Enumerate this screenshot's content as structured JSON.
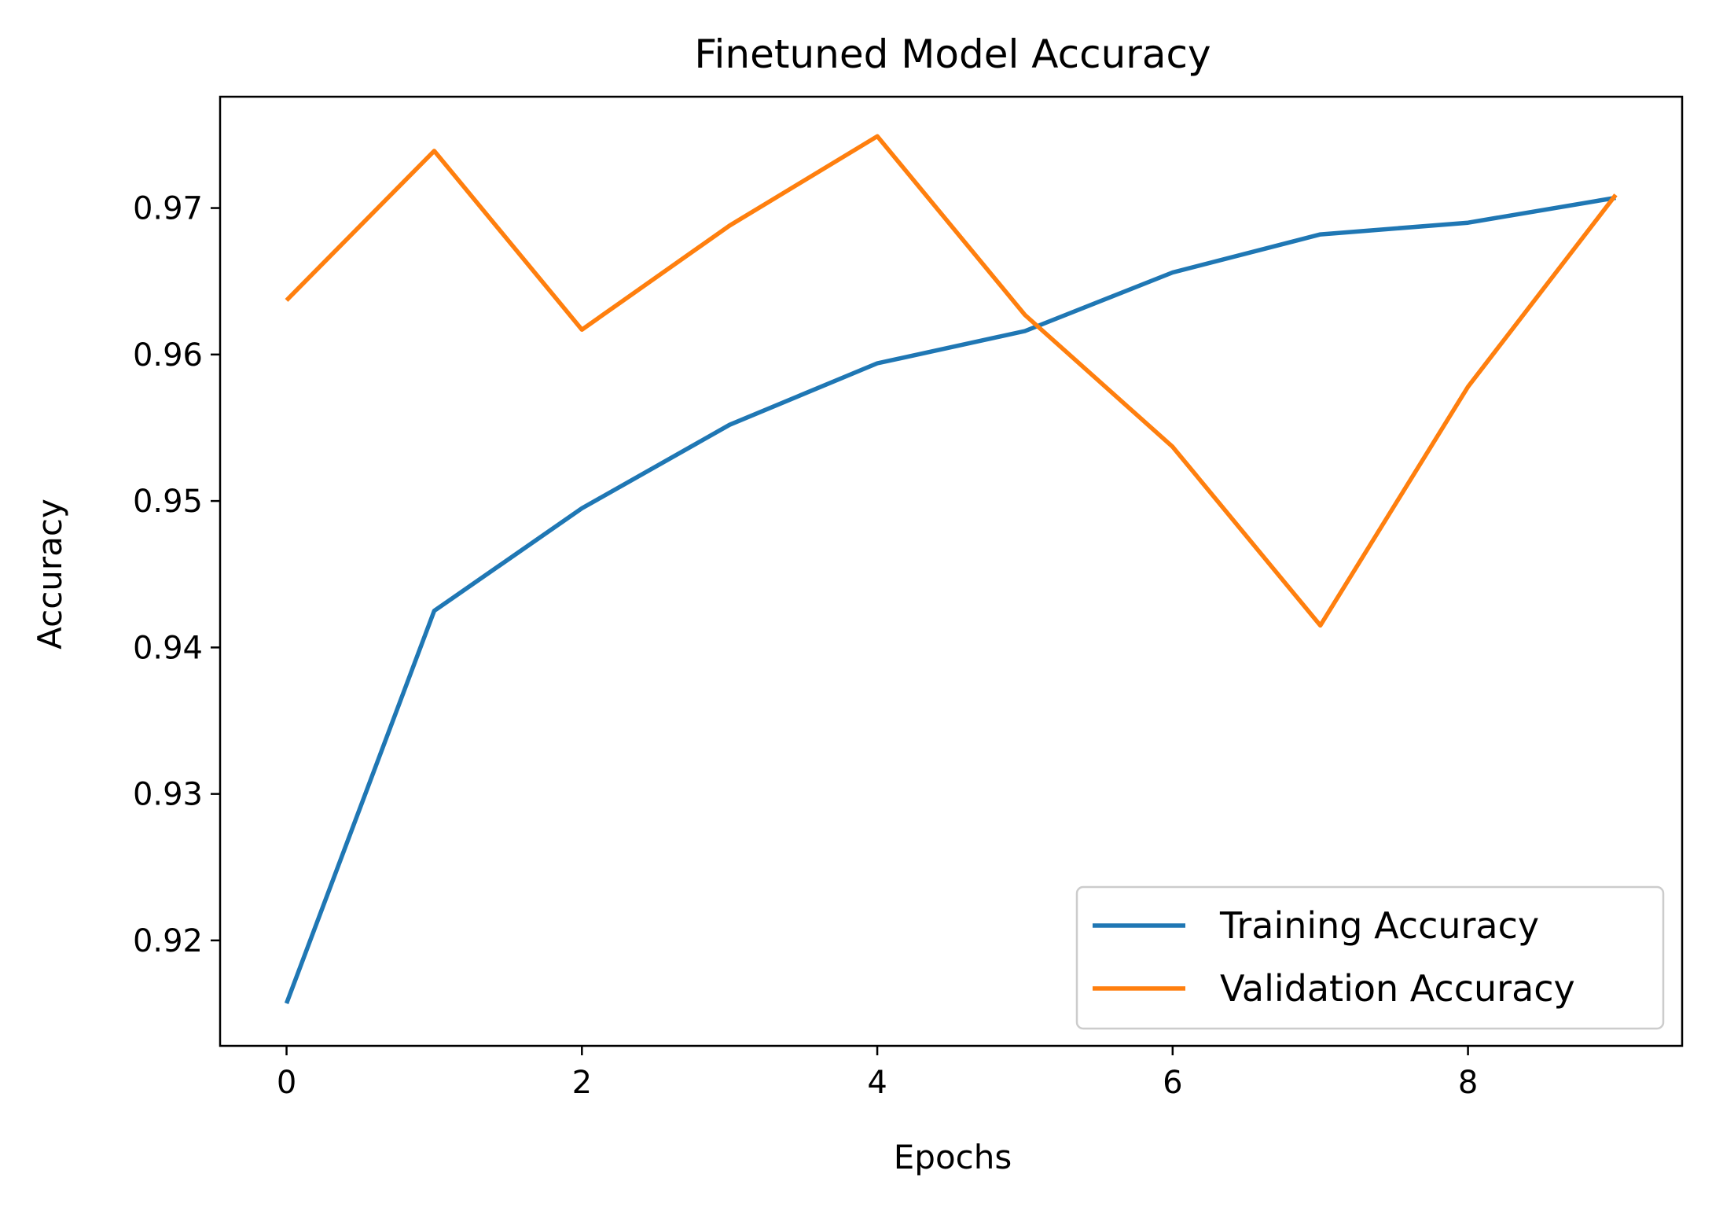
{
  "chart_data": {
    "type": "line",
    "title": "Finetuned Model Accuracy",
    "xlabel": "Epochs",
    "ylabel": "Accuracy",
    "x": [
      0,
      1,
      2,
      3,
      4,
      5,
      6,
      7,
      8,
      9
    ],
    "xlim": [
      -0.45,
      9.45
    ],
    "ylim": [
      0.9128,
      0.9776
    ],
    "xticks": [
      0,
      2,
      4,
      6,
      8
    ],
    "yticks": [
      0.92,
      0.93,
      0.94,
      0.95,
      0.96,
      0.97
    ],
    "ytick_labels": [
      "0.92",
      "0.93",
      "0.94",
      "0.95",
      "0.96",
      "0.97"
    ],
    "grid": false,
    "legend_position": "lower-right",
    "series": [
      {
        "name": "Training Accuracy",
        "color": "#1f77b4",
        "values": [
          0.9157,
          0.9425,
          0.9495,
          0.9552,
          0.9594,
          0.9616,
          0.9656,
          0.9682,
          0.969,
          0.9707
        ]
      },
      {
        "name": "Validation Accuracy",
        "color": "#ff7f0e",
        "values": [
          0.9637,
          0.9739,
          0.9617,
          0.9688,
          0.9749,
          0.9627,
          0.9537,
          0.9415,
          0.9578,
          0.9709
        ]
      }
    ]
  }
}
